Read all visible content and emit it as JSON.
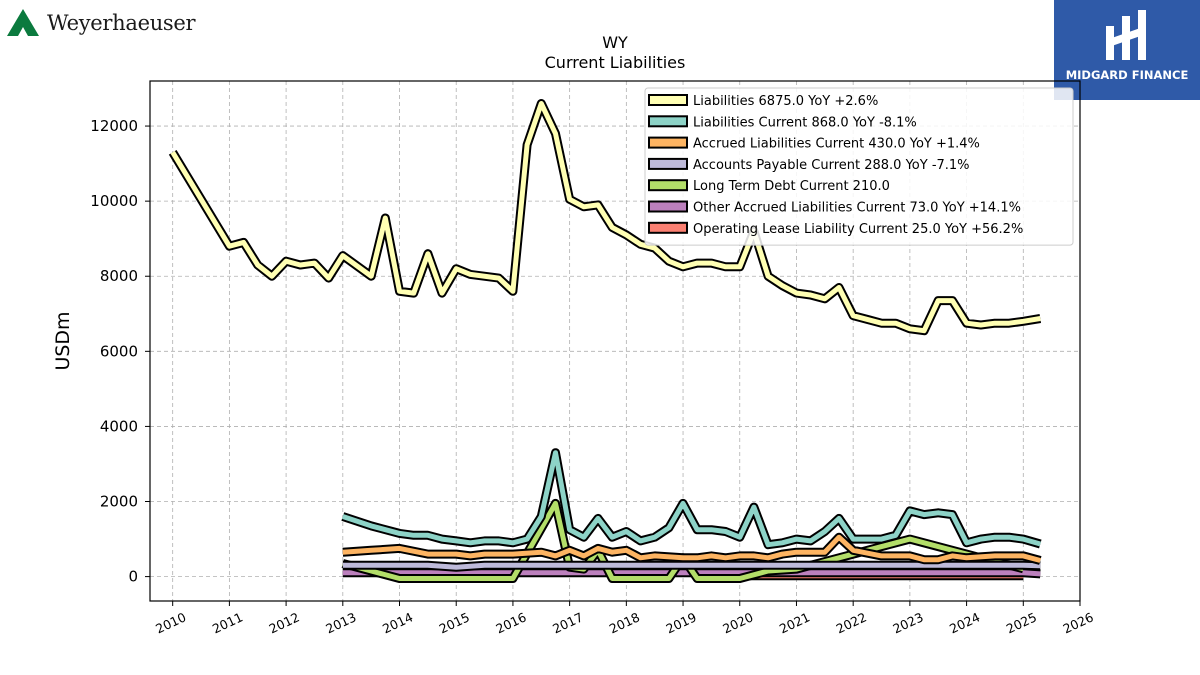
{
  "branding": {
    "left_logo_text": "Weyerhaeuser",
    "right_logo_text": "MIDGARD FINANCE",
    "left_logo_color": "#0b7a3e",
    "right_logo_bg": "#2f5aa8"
  },
  "chart_data": {
    "type": "line",
    "title": "WY",
    "subtitle": "Current  Liabilities",
    "xlabel": "",
    "ylabel": "USDm",
    "xlim": [
      2009.6,
      2026.0
    ],
    "ylim": [
      -650,
      13200
    ],
    "x_ticks": [
      2010,
      2011,
      2012,
      2013,
      2014,
      2015,
      2016,
      2017,
      2018,
      2019,
      2020,
      2021,
      2022,
      2023,
      2024,
      2025,
      2026
    ],
    "y_ticks": [
      0,
      2000,
      4000,
      6000,
      8000,
      10000,
      12000
    ],
    "grid": true,
    "legend_position": "top-right",
    "series": [
      {
        "name": "Liabilities  6875.0 YoY +2.6%",
        "color": "#ffffb3",
        "points": [
          [
            2010.0,
            11300
          ],
          [
            2011.0,
            8800
          ],
          [
            2011.25,
            8900
          ],
          [
            2011.5,
            8300
          ],
          [
            2011.75,
            8000
          ],
          [
            2012.0,
            8400
          ],
          [
            2012.25,
            8300
          ],
          [
            2012.5,
            8350
          ],
          [
            2012.75,
            7950
          ],
          [
            2013.0,
            8550
          ],
          [
            2013.5,
            8000
          ],
          [
            2013.75,
            9550
          ],
          [
            2014.0,
            7600
          ],
          [
            2014.25,
            7550
          ],
          [
            2014.5,
            8600
          ],
          [
            2014.75,
            7550
          ],
          [
            2015.0,
            8200
          ],
          [
            2015.25,
            8050
          ],
          [
            2015.75,
            7950
          ],
          [
            2016.0,
            7600
          ],
          [
            2016.25,
            11500
          ],
          [
            2016.5,
            12600
          ],
          [
            2016.75,
            11800
          ],
          [
            2017.0,
            10050
          ],
          [
            2017.25,
            9850
          ],
          [
            2017.5,
            9900
          ],
          [
            2017.75,
            9300
          ],
          [
            2018.0,
            9100
          ],
          [
            2018.25,
            8850
          ],
          [
            2018.5,
            8750
          ],
          [
            2018.75,
            8400
          ],
          [
            2019.0,
            8250
          ],
          [
            2019.25,
            8350
          ],
          [
            2019.5,
            8350
          ],
          [
            2019.75,
            8250
          ],
          [
            2020.0,
            8250
          ],
          [
            2020.25,
            9200
          ],
          [
            2020.5,
            8000
          ],
          [
            2020.75,
            7750
          ],
          [
            2021.0,
            7550
          ],
          [
            2021.25,
            7500
          ],
          [
            2021.5,
            7400
          ],
          [
            2021.75,
            7700
          ],
          [
            2022.0,
            6950
          ],
          [
            2022.25,
            6850
          ],
          [
            2022.5,
            6750
          ],
          [
            2022.75,
            6750
          ],
          [
            2023.0,
            6600
          ],
          [
            2023.25,
            6550
          ],
          [
            2023.5,
            7350
          ],
          [
            2023.75,
            7350
          ],
          [
            2024.0,
            6750
          ],
          [
            2024.25,
            6700
          ],
          [
            2024.5,
            6750
          ],
          [
            2024.75,
            6750
          ],
          [
            2025.0,
            6800
          ],
          [
            2025.3,
            6875
          ]
        ]
      },
      {
        "name": "Liabilities Current  868.0 YoY -8.1%",
        "color": "#8dd3c7",
        "points": [
          [
            2013.0,
            1600
          ],
          [
            2013.5,
            1350
          ],
          [
            2014.0,
            1150
          ],
          [
            2014.25,
            1100
          ],
          [
            2014.5,
            1100
          ],
          [
            2014.75,
            1000
          ],
          [
            2015.0,
            950
          ],
          [
            2015.25,
            900
          ],
          [
            2015.5,
            950
          ],
          [
            2015.75,
            950
          ],
          [
            2016.0,
            900
          ],
          [
            2016.25,
            1000
          ],
          [
            2016.5,
            1600
          ],
          [
            2016.75,
            3300
          ],
          [
            2017.0,
            1250
          ],
          [
            2017.25,
            1050
          ],
          [
            2017.5,
            1550
          ],
          [
            2017.75,
            1050
          ],
          [
            2018.0,
            1200
          ],
          [
            2018.25,
            950
          ],
          [
            2018.5,
            1050
          ],
          [
            2018.75,
            1300
          ],
          [
            2019.0,
            1950
          ],
          [
            2019.25,
            1250
          ],
          [
            2019.5,
            1250
          ],
          [
            2019.75,
            1200
          ],
          [
            2020.0,
            1050
          ],
          [
            2020.25,
            1850
          ],
          [
            2020.5,
            850
          ],
          [
            2020.75,
            900
          ],
          [
            2021.0,
            1000
          ],
          [
            2021.25,
            950
          ],
          [
            2021.5,
            1200
          ],
          [
            2021.75,
            1550
          ],
          [
            2022.0,
            1000
          ],
          [
            2022.25,
            1000
          ],
          [
            2022.5,
            1000
          ],
          [
            2022.75,
            1100
          ],
          [
            2023.0,
            1750
          ],
          [
            2023.25,
            1650
          ],
          [
            2023.5,
            1700
          ],
          [
            2023.75,
            1650
          ],
          [
            2024.0,
            900
          ],
          [
            2024.25,
            1000
          ],
          [
            2024.5,
            1050
          ],
          [
            2024.75,
            1050
          ],
          [
            2025.0,
            1000
          ],
          [
            2025.3,
            868
          ]
        ]
      },
      {
        "name": "Accrued Liabilities Current  430.0 YoY +1.4%",
        "color": "#fdb462",
        "points": [
          [
            2013.0,
            650
          ],
          [
            2013.5,
            700
          ],
          [
            2014.0,
            750
          ],
          [
            2014.5,
            600
          ],
          [
            2015.0,
            600
          ],
          [
            2015.25,
            550
          ],
          [
            2015.5,
            600
          ],
          [
            2016.0,
            600
          ],
          [
            2016.5,
            650
          ],
          [
            2016.75,
            550
          ],
          [
            2017.0,
            700
          ],
          [
            2017.25,
            550
          ],
          [
            2017.5,
            750
          ],
          [
            2017.75,
            650
          ],
          [
            2018.0,
            700
          ],
          [
            2018.25,
            500
          ],
          [
            2018.5,
            550
          ],
          [
            2019.0,
            500
          ],
          [
            2019.25,
            500
          ],
          [
            2019.5,
            550
          ],
          [
            2019.75,
            500
          ],
          [
            2020.0,
            550
          ],
          [
            2020.25,
            550
          ],
          [
            2020.5,
            500
          ],
          [
            2020.75,
            600
          ],
          [
            2021.0,
            650
          ],
          [
            2021.5,
            650
          ],
          [
            2021.75,
            1050
          ],
          [
            2022.0,
            700
          ],
          [
            2022.5,
            550
          ],
          [
            2023.0,
            550
          ],
          [
            2023.25,
            450
          ],
          [
            2023.5,
            450
          ],
          [
            2023.75,
            550
          ],
          [
            2024.0,
            500
          ],
          [
            2024.5,
            550
          ],
          [
            2025.0,
            550
          ],
          [
            2025.3,
            430
          ]
        ]
      },
      {
        "name": "Accounts Payable Current  288.0 YoY -7.1%",
        "color": "#bebada",
        "points": [
          [
            2013.0,
            300
          ],
          [
            2014.0,
            300
          ],
          [
            2014.5,
            300
          ],
          [
            2015.0,
            250
          ],
          [
            2015.5,
            300
          ],
          [
            2016.0,
            300
          ],
          [
            2016.5,
            300
          ],
          [
            2017.0,
            300
          ],
          [
            2017.5,
            300
          ],
          [
            2018.0,
            300
          ],
          [
            2018.5,
            300
          ],
          [
            2019.0,
            300
          ],
          [
            2019.5,
            300
          ],
          [
            2020.0,
            300
          ],
          [
            2020.5,
            300
          ],
          [
            2021.0,
            300
          ],
          [
            2021.5,
            300
          ],
          [
            2022.0,
            300
          ],
          [
            2022.5,
            300
          ],
          [
            2023.0,
            300
          ],
          [
            2023.5,
            300
          ],
          [
            2024.0,
            300
          ],
          [
            2024.5,
            300
          ],
          [
            2025.0,
            300
          ],
          [
            2025.3,
            288
          ]
        ]
      },
      {
        "name": "Long Term Debt Current  210.0",
        "color": "#b3de69",
        "points": [
          [
            2013.0,
            350
          ],
          [
            2013.5,
            150
          ],
          [
            2014.0,
            -50
          ],
          [
            2014.25,
            -50
          ],
          [
            2014.5,
            -50
          ],
          [
            2015.0,
            -50
          ],
          [
            2016.0,
            -50
          ],
          [
            2016.75,
            1950
          ],
          [
            2017.0,
            250
          ],
          [
            2017.25,
            200
          ],
          [
            2017.5,
            700
          ],
          [
            2017.75,
            -50
          ],
          [
            2018.0,
            -50
          ],
          [
            2018.5,
            -50
          ],
          [
            2018.75,
            -50
          ],
          [
            2019.0,
            500
          ],
          [
            2019.25,
            -50
          ],
          [
            2019.5,
            -50
          ],
          [
            2020.0,
            -50
          ],
          [
            2020.5,
            150
          ],
          [
            2021.0,
            200
          ],
          [
            2021.5,
            400
          ],
          [
            2022.0,
            600
          ],
          [
            2022.5,
            800
          ],
          [
            2023.0,
            1000
          ],
          [
            2023.5,
            800
          ],
          [
            2024.0,
            600
          ],
          [
            2024.5,
            400
          ],
          [
            2025.0,
            210
          ]
        ]
      },
      {
        "name": "Other Accrued Liabilities Current  73.0 YoY +14.1%",
        "color": "#bc80bd",
        "points": [
          [
            2013.0,
            100
          ],
          [
            2014.0,
            100
          ],
          [
            2015.0,
            100
          ],
          [
            2016.0,
            100
          ],
          [
            2016.5,
            100
          ],
          [
            2017.0,
            100
          ],
          [
            2018.0,
            100
          ],
          [
            2019.0,
            100
          ],
          [
            2020.0,
            100
          ],
          [
            2021.0,
            100
          ],
          [
            2022.0,
            100
          ],
          [
            2023.0,
            100
          ],
          [
            2024.0,
            100
          ],
          [
            2025.0,
            100
          ],
          [
            2025.3,
            73
          ]
        ]
      },
      {
        "name": "Operating Lease Liability Current  25.0 YoY +56.2%",
        "color": "#fb8072",
        "points": [
          [
            2020.0,
            25
          ],
          [
            2021.0,
            25
          ],
          [
            2022.0,
            25
          ],
          [
            2023.0,
            25
          ],
          [
            2024.0,
            25
          ],
          [
            2025.0,
            25
          ]
        ]
      }
    ]
  }
}
